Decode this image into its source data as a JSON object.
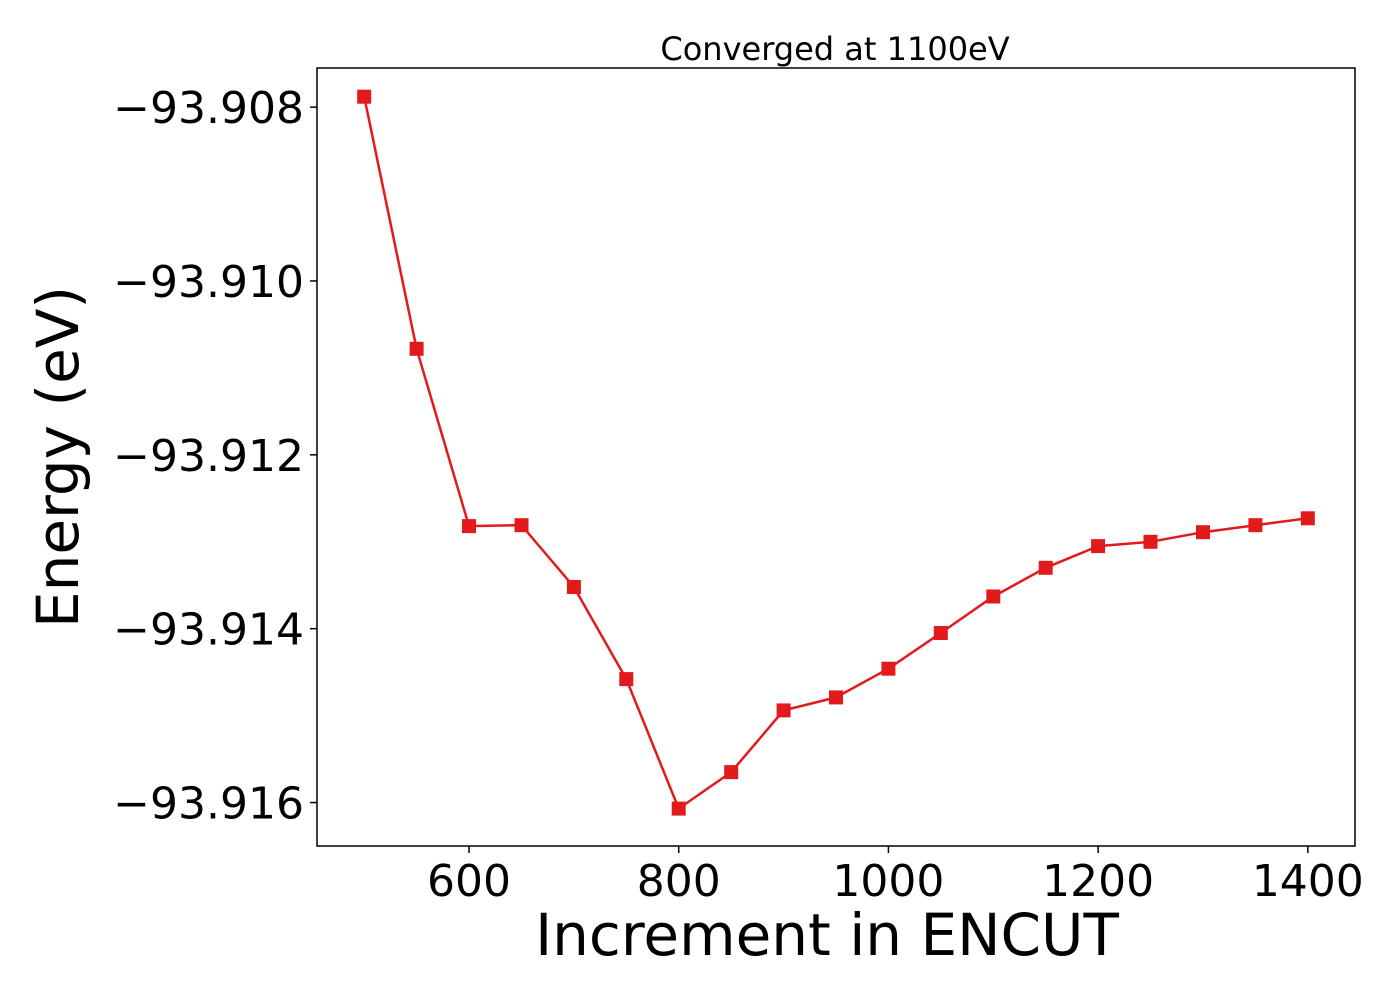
{
  "chart_data": {
    "type": "line",
    "title": "Converged at 1100eV",
    "xlabel": "Increment in ENCUT",
    "ylabel": "Energy (eV)",
    "xlim": [
      455,
      1445
    ],
    "ylim": [
      -93.9165,
      -93.90755
    ],
    "xticks": [
      600,
      800,
      1000,
      1200,
      1400
    ],
    "xtick_labels": [
      "600",
      "800",
      "1000",
      "1200",
      "1400"
    ],
    "yticks": [
      -93.908,
      -93.91,
      -93.912,
      -93.914,
      -93.916
    ],
    "ytick_labels": [
      "−93.908",
      "−93.910",
      "−93.912",
      "−93.914",
      "−93.916"
    ],
    "grid": false,
    "marker": "square",
    "color": "#e31a1c",
    "series": [
      {
        "name": "",
        "x": [
          500,
          550,
          600,
          650,
          700,
          750,
          800,
          850,
          900,
          950,
          1000,
          1050,
          1100,
          1150,
          1200,
          1250,
          1300,
          1350,
          1400
        ],
        "y": [
          -93.90788,
          -93.91078,
          -93.91282,
          -93.91281,
          -93.91352,
          -93.91458,
          -93.91607,
          -93.91565,
          -93.91494,
          -93.91479,
          -93.91446,
          -93.91405,
          -93.91363,
          -93.9133,
          -93.91305,
          -93.913,
          -93.91289,
          -93.91281,
          -93.91273
        ]
      }
    ]
  }
}
